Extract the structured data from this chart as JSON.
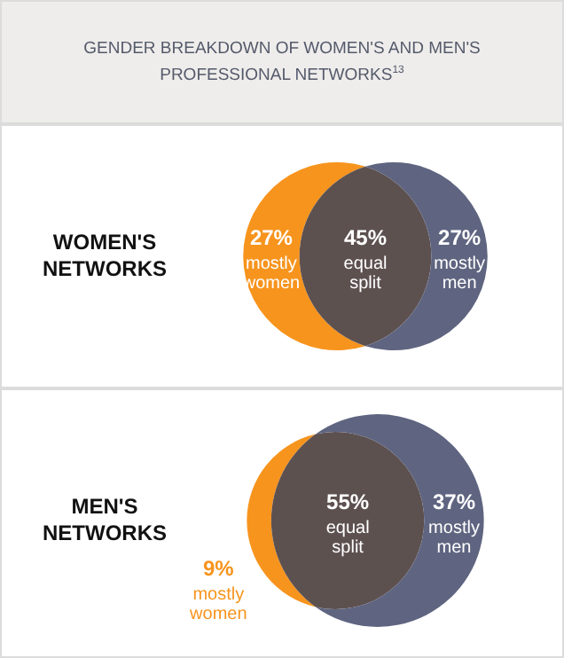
{
  "chart_data": [
    {
      "type": "other",
      "title": "GENDER BREAKDOWN OF WOMEN'S AND MEN'S PROFESSIONAL NETWORKS$^{13}$"
    },
    {
      "type": "other",
      "title": "WOMEN'S NETWORKS",
      "categories": [
        "mostly women",
        "equal split",
        "mostly men"
      ],
      "values": [
        27,
        45,
        27
      ],
      "value_labels": [
        "27%",
        "45%",
        "27%"
      ],
      "colors": [
        "#f7941d",
        "#5d5150",
        "#5f6580"
      ]
    },
    {
      "type": "other",
      "title": "MEN'S NETWORKS",
      "categories": [
        "mostly women",
        "equal split",
        "mostly men"
      ],
      "values": [
        9,
        55,
        37
      ],
      "value_labels": [
        "9%",
        "55%",
        "37%"
      ],
      "colors": [
        "#f7941d",
        "#5d5150",
        "#5f6580"
      ]
    }
  ]
}
